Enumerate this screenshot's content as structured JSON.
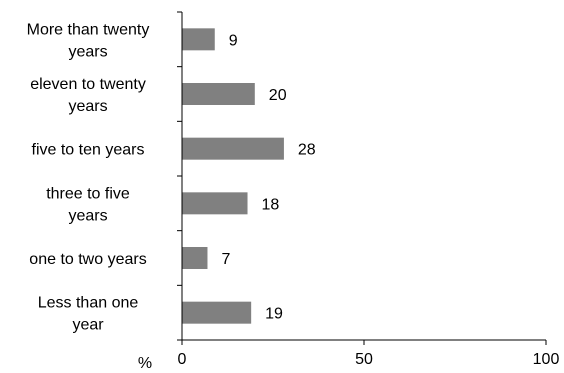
{
  "chart_data": {
    "type": "bar",
    "orientation": "horizontal",
    "categories": [
      [
        "More than twenty",
        "years"
      ],
      [
        "eleven to twenty",
        "years"
      ],
      [
        "five to ten years"
      ],
      [
        "three to five",
        "years"
      ],
      [
        "one to two years"
      ],
      [
        "Less than one",
        "year"
      ]
    ],
    "values": [
      9,
      20,
      28,
      18,
      7,
      19
    ],
    "data_labels": [
      "9",
      "20",
      "28",
      "18",
      "7",
      "19"
    ],
    "xlim": [
      0,
      100
    ],
    "xticks": [
      0,
      50,
      100
    ],
    "xtick_labels": [
      "0",
      "50",
      "100"
    ],
    "unit_label": "%",
    "bar_color": "#808080",
    "grid": false,
    "legend": "none"
  }
}
